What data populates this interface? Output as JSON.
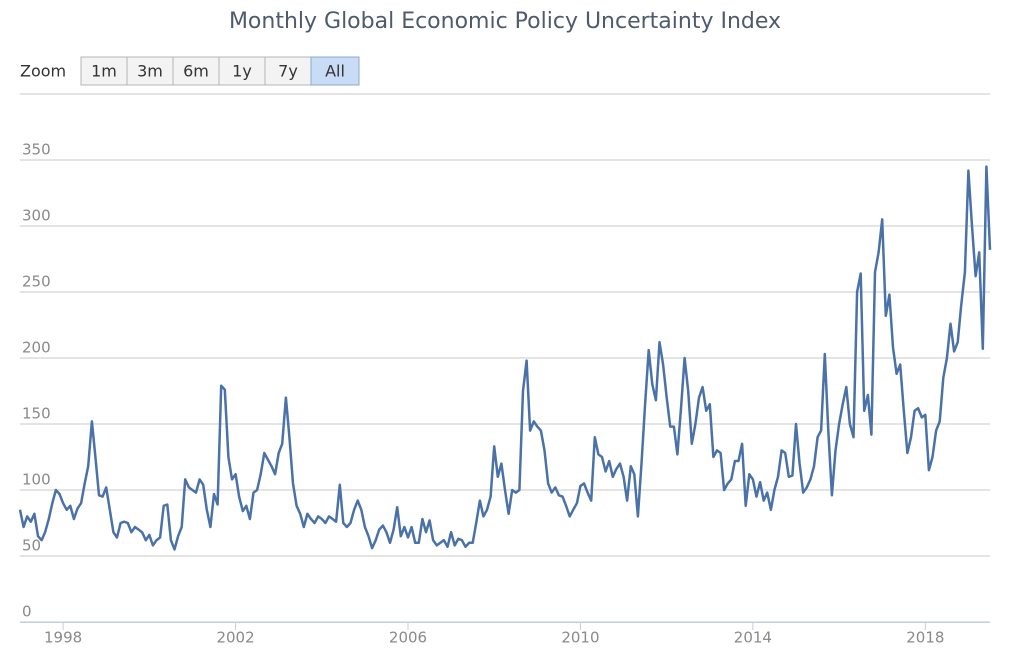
{
  "chart_data": {
    "type": "line",
    "title": "Monthly Global Economic Policy Uncertainty Index",
    "range_selector": {
      "label": "Zoom",
      "buttons": [
        "1m",
        "3m",
        "6m",
        "1y",
        "7y",
        "All"
      ],
      "selected": 5
    },
    "xlim": [
      1997,
      2019.5
    ],
    "xticks": [
      1998,
      2002,
      2006,
      2010,
      2014,
      2018
    ],
    "ylim": [
      0,
      400
    ],
    "yticks": [
      0,
      50,
      100,
      150,
      200,
      250,
      300,
      350
    ],
    "grid": true,
    "x": [
      1997,
      1997.083,
      1997.167,
      1997.25,
      1997.333,
      1997.417,
      1997.5,
      1997.583,
      1997.667,
      1997.75,
      1997.833,
      1997.917,
      1998,
      1998.083,
      1998.167,
      1998.25,
      1998.333,
      1998.417,
      1998.5,
      1998.583,
      1998.667,
      1998.75,
      1998.833,
      1998.917,
      1999,
      1999.083,
      1999.167,
      1999.25,
      1999.333,
      1999.417,
      1999.5,
      1999.583,
      1999.667,
      1999.75,
      1999.833,
      1999.917,
      2000,
      2000.083,
      2000.167,
      2000.25,
      2000.333,
      2000.417,
      2000.5,
      2000.583,
      2000.667,
      2000.75,
      2000.833,
      2000.917,
      2001,
      2001.083,
      2001.167,
      2001.25,
      2001.333,
      2001.417,
      2001.5,
      2001.583,
      2001.667,
      2001.75,
      2001.833,
      2001.917,
      2002,
      2002.083,
      2002.167,
      2002.25,
      2002.333,
      2002.417,
      2002.5,
      2002.583,
      2002.667,
      2002.75,
      2002.833,
      2002.917,
      2003,
      2003.083,
      2003.167,
      2003.25,
      2003.333,
      2003.417,
      2003.5,
      2003.583,
      2003.667,
      2003.75,
      2003.833,
      2003.917,
      2004,
      2004.083,
      2004.167,
      2004.25,
      2004.333,
      2004.417,
      2004.5,
      2004.583,
      2004.667,
      2004.75,
      2004.833,
      2004.917,
      2005,
      2005.083,
      2005.167,
      2005.25,
      2005.333,
      2005.417,
      2005.5,
      2005.583,
      2005.667,
      2005.75,
      2005.833,
      2005.917,
      2006,
      2006.083,
      2006.167,
      2006.25,
      2006.333,
      2006.417,
      2006.5,
      2006.583,
      2006.667,
      2006.75,
      2006.833,
      2006.917,
      2007,
      2007.083,
      2007.167,
      2007.25,
      2007.333,
      2007.417,
      2007.5,
      2007.583,
      2007.667,
      2007.75,
      2007.833,
      2007.917,
      2008,
      2008.083,
      2008.167,
      2008.25,
      2008.333,
      2008.417,
      2008.5,
      2008.583,
      2008.667,
      2008.75,
      2008.833,
      2008.917,
      2009,
      2009.083,
      2009.167,
      2009.25,
      2009.333,
      2009.417,
      2009.5,
      2009.583,
      2009.667,
      2009.75,
      2009.833,
      2009.917,
      2010,
      2010.083,
      2010.167,
      2010.25,
      2010.333,
      2010.417,
      2010.5,
      2010.583,
      2010.667,
      2010.75,
      2010.833,
      2010.917,
      2011,
      2011.083,
      2011.167,
      2011.25,
      2011.333,
      2011.417,
      2011.5,
      2011.583,
      2011.667,
      2011.75,
      2011.833,
      2011.917,
      2012,
      2012.083,
      2012.167,
      2012.25,
      2012.333,
      2012.417,
      2012.5,
      2012.583,
      2012.667,
      2012.75,
      2012.833,
      2012.917,
      2013,
      2013.083,
      2013.167,
      2013.25,
      2013.333,
      2013.417,
      2013.5,
      2013.583,
      2013.667,
      2013.75,
      2013.833,
      2013.917,
      2014,
      2014.083,
      2014.167,
      2014.25,
      2014.333,
      2014.417,
      2014.5,
      2014.583,
      2014.667,
      2014.75,
      2014.833,
      2014.917,
      2015,
      2015.083,
      2015.167,
      2015.25,
      2015.333,
      2015.417,
      2015.5,
      2015.583,
      2015.667,
      2015.75,
      2015.833,
      2015.917,
      2016,
      2016.083,
      2016.167,
      2016.25,
      2016.333,
      2016.417,
      2016.5,
      2016.583,
      2016.667,
      2016.75,
      2016.833,
      2016.917,
      2017,
      2017.083,
      2017.167,
      2017.25,
      2017.333,
      2017.417,
      2017.5,
      2017.583,
      2017.667,
      2017.75,
      2017.833,
      2017.917,
      2018,
      2018.083,
      2018.167,
      2018.25,
      2018.333,
      2018.417,
      2018.5,
      2018.583,
      2018.667,
      2018.75,
      2018.833,
      2018.917,
      2019,
      2019.083,
      2019.167,
      2019.25,
      2019.333,
      2019.417,
      2019.5
    ],
    "series": [
      {
        "color": "#4a72a8",
        "values": [
          85,
          72,
          80,
          76,
          82,
          65,
          62,
          68,
          78,
          90,
          100,
          97,
          90,
          85,
          88,
          78,
          86,
          90,
          105,
          118,
          152,
          125,
          96,
          95,
          102,
          85,
          68,
          64,
          75,
          76,
          75,
          68,
          72,
          70,
          68,
          62,
          66,
          58,
          62,
          64,
          88,
          89,
          62,
          55,
          65,
          72,
          108,
          102,
          100,
          98,
          108,
          104,
          85,
          72,
          97,
          89,
          179,
          176,
          125,
          108,
          112,
          95,
          84,
          88,
          78,
          98,
          100,
          112,
          128,
          123,
          118,
          112,
          128,
          135,
          170,
          140,
          105,
          88,
          82,
          72,
          82,
          78,
          75,
          80,
          78,
          75,
          80,
          78,
          76,
          104,
          75,
          72,
          75,
          85,
          92,
          85,
          72,
          65,
          56,
          62,
          70,
          73,
          68,
          60,
          70,
          87,
          65,
          72,
          64,
          72,
          60,
          60,
          78,
          68,
          77,
          62,
          58,
          60,
          62,
          57,
          68,
          58,
          63,
          62,
          57,
          60,
          60,
          75,
          92,
          80,
          85,
          95,
          133,
          110,
          120,
          100,
          82,
          100,
          98,
          100,
          175,
          198,
          145,
          152,
          148,
          145,
          130,
          105,
          98,
          102,
          96,
          95,
          88,
          80,
          85,
          90,
          103,
          105,
          98,
          92,
          140,
          127,
          125,
          114,
          122,
          110,
          116,
          120,
          110,
          92,
          118,
          112,
          80,
          120,
          165,
          206,
          180,
          168,
          212,
          195,
          170,
          148,
          148,
          127,
          162,
          200,
          175,
          135,
          150,
          170,
          178,
          160,
          165,
          125,
          130,
          128,
          100,
          105,
          108,
          122,
          122,
          135,
          88,
          112,
          108,
          95,
          106,
          92,
          98,
          85,
          100,
          110,
          130,
          128,
          110,
          111,
          150,
          120,
          98,
          102,
          108,
          118,
          140,
          145,
          203,
          145,
          96,
          130,
          150,
          165,
          178,
          150,
          140,
          250,
          264,
          160,
          172,
          142,
          265,
          280,
          305,
          232,
          248,
          208,
          188,
          195,
          160,
          128,
          140,
          160,
          162,
          155,
          157,
          115,
          125,
          145,
          152,
          185,
          200,
          226,
          205,
          212,
          240,
          265,
          342,
          300,
          262,
          280,
          207,
          345,
          282
        ]
      }
    ]
  }
}
